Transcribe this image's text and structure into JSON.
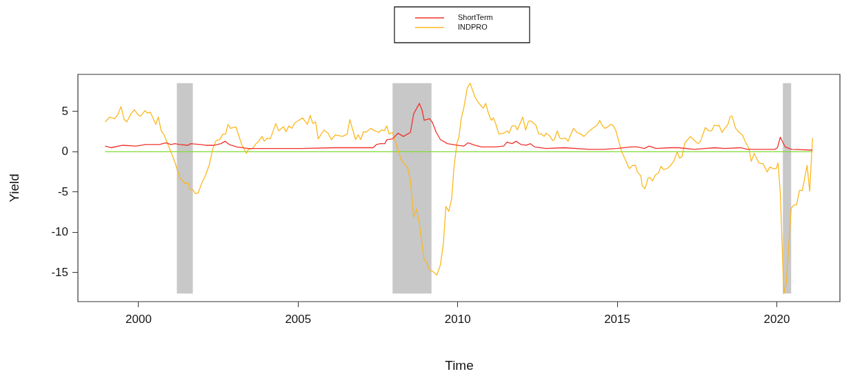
{
  "chart_data": {
    "type": "line",
    "xlabel": "Time",
    "ylabel": "Yield",
    "legend": "top",
    "grid": false,
    "marker": "none",
    "line_style": "solid",
    "xlim": [
      1998.1,
      2022.0
    ],
    "xticks": [
      2000,
      2005,
      2010,
      2015,
      2020
    ],
    "ylim": [
      -18.6,
      9.6
    ],
    "yticks": [
      -15,
      -10,
      -5,
      0,
      5
    ],
    "ref_lines": [
      {
        "axis": "y",
        "value": 0,
        "label": null,
        "color": "#7fdc2f"
      }
    ],
    "bands": [
      {
        "axis": "x",
        "from": 2001.2,
        "to": 2001.7,
        "label": null,
        "color": "#c8c8c8"
      },
      {
        "axis": "x",
        "from": 2007.96,
        "to": 2009.18,
        "label": null,
        "color": "#c8c8c8"
      },
      {
        "axis": "x",
        "from": 2020.19,
        "to": 2020.45,
        "label": null,
        "color": "#c8c8c8"
      }
    ],
    "series": [
      {
        "name": "ShortTerm",
        "color": "#f0302a",
        "x": [
          1998.95,
          1999.14,
          1999.5,
          1999.93,
          2000.22,
          2000.65,
          2000.86,
          2001.01,
          2001.14,
          2001.29,
          2001.55,
          2001.63,
          2001.94,
          2002.11,
          2002.37,
          2002.58,
          2002.71,
          2002.84,
          2003.08,
          2003.44,
          2004.04,
          2005.1,
          2006.17,
          2007.35,
          2007.46,
          2007.57,
          2007.72,
          2007.78,
          2007.96,
          2008.13,
          2008.3,
          2008.43,
          2008.52,
          2008.62,
          2008.8,
          2008.88,
          2008.95,
          2009.12,
          2009.2,
          2009.33,
          2009.46,
          2009.68,
          2009.98,
          2010.19,
          2010.32,
          2010.54,
          2010.75,
          2011.18,
          2011.44,
          2011.55,
          2011.7,
          2011.83,
          2011.98,
          2012.15,
          2012.28,
          2012.41,
          2012.77,
          2013.33,
          2014.13,
          2014.56,
          2014.99,
          2015.42,
          2015.63,
          2015.85,
          2016.0,
          2016.22,
          2016.65,
          2016.92,
          2017.42,
          2018.06,
          2018.37,
          2018.86,
          2019.08,
          2019.94,
          2020.02,
          2020.11,
          2020.26,
          2020.47,
          2021.12
        ],
        "values": [
          0.7,
          0.5,
          0.8,
          0.7,
          0.9,
          0.9,
          1.1,
          0.9,
          1.0,
          0.9,
          0.8,
          1.0,
          0.9,
          0.8,
          0.8,
          1.0,
          1.3,
          0.9,
          0.6,
          0.4,
          0.4,
          0.4,
          0.5,
          0.5,
          0.9,
          1.0,
          1.0,
          1.5,
          1.6,
          2.3,
          1.9,
          2.2,
          2.4,
          4.7,
          6.0,
          5.2,
          3.9,
          4.1,
          3.7,
          2.4,
          1.5,
          1.0,
          0.8,
          0.7,
          1.1,
          0.8,
          0.6,
          0.6,
          0.7,
          1.2,
          1.0,
          1.3,
          0.9,
          0.8,
          1.0,
          0.6,
          0.4,
          0.5,
          0.3,
          0.3,
          0.4,
          0.6,
          0.6,
          0.4,
          0.7,
          0.4,
          0.5,
          0.5,
          0.3,
          0.5,
          0.4,
          0.5,
          0.3,
          0.3,
          0.5,
          1.8,
          0.6,
          0.3,
          0.2
        ]
      },
      {
        "name": "INDPRO",
        "color": "#fbb71c",
        "x": [
          1998.95,
          1999.1,
          1999.25,
          1999.35,
          1999.45,
          1999.55,
          1999.63,
          1999.76,
          1999.87,
          1999.98,
          2000.06,
          2000.2,
          2000.28,
          2000.37,
          2000.54,
          2000.62,
          2000.71,
          2000.8,
          2000.9,
          2001.01,
          2001.14,
          2001.29,
          2001.44,
          2001.55,
          2001.61,
          2001.7,
          2001.78,
          2001.87,
          2001.98,
          2002.09,
          2002.22,
          2002.32,
          2002.43,
          2002.54,
          2002.65,
          2002.73,
          2002.8,
          2002.88,
          2003.05,
          2003.23,
          2003.38,
          2003.44,
          2003.57,
          2003.66,
          2003.76,
          2003.87,
          2003.94,
          2004.04,
          2004.13,
          2004.3,
          2004.39,
          2004.54,
          2004.62,
          2004.71,
          2004.8,
          2004.9,
          2005.14,
          2005.18,
          2005.29,
          2005.38,
          2005.46,
          2005.55,
          2005.63,
          2005.81,
          2005.94,
          2006.04,
          2006.17,
          2006.39,
          2006.54,
          2006.62,
          2006.8,
          2006.88,
          2006.96,
          2007.05,
          2007.12,
          2007.27,
          2007.4,
          2007.53,
          2007.61,
          2007.7,
          2007.78,
          2007.85,
          2007.96,
          2008.11,
          2008.22,
          2008.32,
          2008.43,
          2008.52,
          2008.62,
          2008.71,
          2008.8,
          2008.95,
          2009.03,
          2009.12,
          2009.2,
          2009.29,
          2009.35,
          2009.46,
          2009.55,
          2009.63,
          2009.72,
          2009.81,
          2009.89,
          2009.98,
          2010.04,
          2010.11,
          2010.19,
          2010.3,
          2010.39,
          2010.54,
          2010.65,
          2010.8,
          2010.88,
          2010.97,
          2011.05,
          2011.12,
          2011.2,
          2011.29,
          2011.44,
          2011.55,
          2011.61,
          2011.7,
          2011.81,
          2011.87,
          2012.04,
          2012.13,
          2012.22,
          2012.3,
          2012.45,
          2012.54,
          2012.62,
          2012.71,
          2012.77,
          2012.88,
          2012.97,
          2013.03,
          2013.12,
          2013.2,
          2013.29,
          2013.38,
          2013.46,
          2013.55,
          2013.63,
          2013.74,
          2013.85,
          2013.96,
          2014.13,
          2014.26,
          2014.37,
          2014.45,
          2014.54,
          2014.62,
          2014.71,
          2014.8,
          2014.88,
          2014.95,
          2015.14,
          2015.38,
          2015.48,
          2015.57,
          2015.63,
          2015.74,
          2015.78,
          2015.87,
          2015.96,
          2016.02,
          2016.11,
          2016.19,
          2016.3,
          2016.37,
          2016.45,
          2016.56,
          2016.67,
          2016.77,
          2016.88,
          2016.95,
          2017.03,
          2017.12,
          2017.29,
          2017.42,
          2017.53,
          2017.61,
          2017.76,
          2017.87,
          2017.96,
          2018.04,
          2018.15,
          2018.19,
          2018.28,
          2018.39,
          2018.47,
          2018.54,
          2018.6,
          2018.71,
          2018.82,
          2018.92,
          2019.03,
          2019.12,
          2019.2,
          2019.29,
          2019.44,
          2019.57,
          2019.7,
          2019.78,
          2019.89,
          2019.98,
          2020.04,
          2020.11,
          2020.22,
          2020.3,
          2020.45,
          2020.54,
          2020.62,
          2020.71,
          2020.8,
          2020.95,
          2021.03,
          2021.12
        ],
        "values": [
          3.7,
          4.3,
          4.1,
          4.6,
          5.6,
          4.0,
          3.7,
          4.7,
          5.2,
          4.6,
          4.4,
          5.1,
          4.8,
          4.9,
          3.4,
          4.3,
          2.6,
          2.1,
          1.1,
          0,
          -1.3,
          -3.2,
          -3.9,
          -3.9,
          -4.7,
          -4.7,
          -5.2,
          -5.1,
          -3.9,
          -3.0,
          -1.6,
          0.3,
          1.4,
          1.5,
          2.2,
          2.2,
          3.4,
          2.9,
          3.1,
          0.9,
          -0.2,
          0.3,
          0.4,
          0.9,
          1.3,
          1.9,
          1.3,
          1.7,
          1.6,
          3.5,
          2.6,
          3.1,
          2.5,
          3.2,
          2.9,
          3.6,
          4.2,
          4.0,
          3.4,
          4.5,
          3.5,
          3.7,
          1.6,
          2.7,
          2.3,
          1.5,
          2.1,
          1.9,
          2.2,
          4.0,
          1.5,
          2.1,
          1.5,
          2.5,
          2.4,
          2.9,
          2.6,
          2.4,
          2.7,
          2.6,
          3.2,
          2.2,
          2.4,
          0.5,
          -0.9,
          -1.5,
          -1.9,
          -3.6,
          -8.1,
          -7.1,
          -8.9,
          -13.4,
          -13.7,
          -14.7,
          -14.8,
          -15.1,
          -15.3,
          -14.0,
          -11.5,
          -6.8,
          -7.4,
          -5.9,
          -1.7,
          1.1,
          1.8,
          4.1,
          5.4,
          7.9,
          8.5,
          6.8,
          6.1,
          5.4,
          6.0,
          4.7,
          3.9,
          4.2,
          3.4,
          2.2,
          2.3,
          2.6,
          2.3,
          3.2,
          3.2,
          2.7,
          4.3,
          2.7,
          3.8,
          3.8,
          3.3,
          2.2,
          2.2,
          1.9,
          2.3,
          2.0,
          1.4,
          1.5,
          2.6,
          1.7,
          1.6,
          1.7,
          1.3,
          2.2,
          2.9,
          2.4,
          2.2,
          1.9,
          2.6,
          3.0,
          3.3,
          3.9,
          3.2,
          2.9,
          3.1,
          3.4,
          3.2,
          2.7,
          0,
          -2.1,
          -1.7,
          -1.7,
          -2.5,
          -3.0,
          -4.2,
          -4.6,
          -3.3,
          -3.2,
          -3.6,
          -2.9,
          -2.6,
          -1.8,
          -2.2,
          -2.1,
          -1.7,
          -1.2,
          0,
          -0.8,
          -0.6,
          1.1,
          1.9,
          1.4,
          1.0,
          1.3,
          3.0,
          2.6,
          2.6,
          3.3,
          3.2,
          3.3,
          2.4,
          3.0,
          3.4,
          4.4,
          4.4,
          2.9,
          2.4,
          2.1,
          1.1,
          0.5,
          -1.2,
          -0.2,
          -1.4,
          -1.5,
          -2.5,
          -1.9,
          -2.1,
          -2.1,
          -1.4,
          -5.1,
          -17.6,
          -16.2,
          -7.0,
          -6.6,
          -6.6,
          -4.8,
          -4.8,
          -1.7,
          -4.9,
          1.7
        ]
      }
    ]
  }
}
